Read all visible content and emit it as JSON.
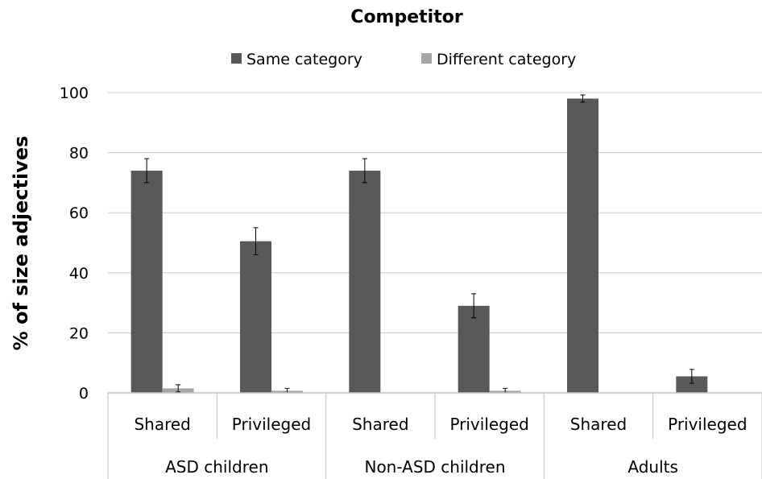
{
  "chart_data": {
    "type": "bar",
    "title": "Competitor",
    "ylabel": "% of size adjectives",
    "xlabel": "",
    "ylim": [
      0,
      100
    ],
    "yticks": [
      0,
      20,
      40,
      60,
      80,
      100
    ],
    "grid": true,
    "legend_position": "top",
    "groups": [
      {
        "label": "ASD children",
        "categories": [
          "Shared",
          "Privileged"
        ]
      },
      {
        "label": "Non-ASD children",
        "categories": [
          "Shared",
          "Privileged"
        ]
      },
      {
        "label": "Adults",
        "categories": [
          "Shared",
          "Privileged"
        ]
      }
    ],
    "categories": [
      "Shared",
      "Privileged",
      "Shared",
      "Privileged",
      "Shared",
      "Privileged"
    ],
    "series": [
      {
        "name": "Same category",
        "color": "#595959",
        "values": [
          74,
          50.5,
          74,
          29,
          98,
          5.5
        ],
        "errors": [
          4,
          4.5,
          4,
          4,
          1.2,
          2.3
        ]
      },
      {
        "name": "Different category",
        "color": "#a6a6a6",
        "values": [
          1.5,
          0.7,
          0,
          0.7,
          0,
          0
        ],
        "errors": [
          1.2,
          0.8,
          0,
          0.8,
          0,
          0
        ]
      }
    ]
  }
}
